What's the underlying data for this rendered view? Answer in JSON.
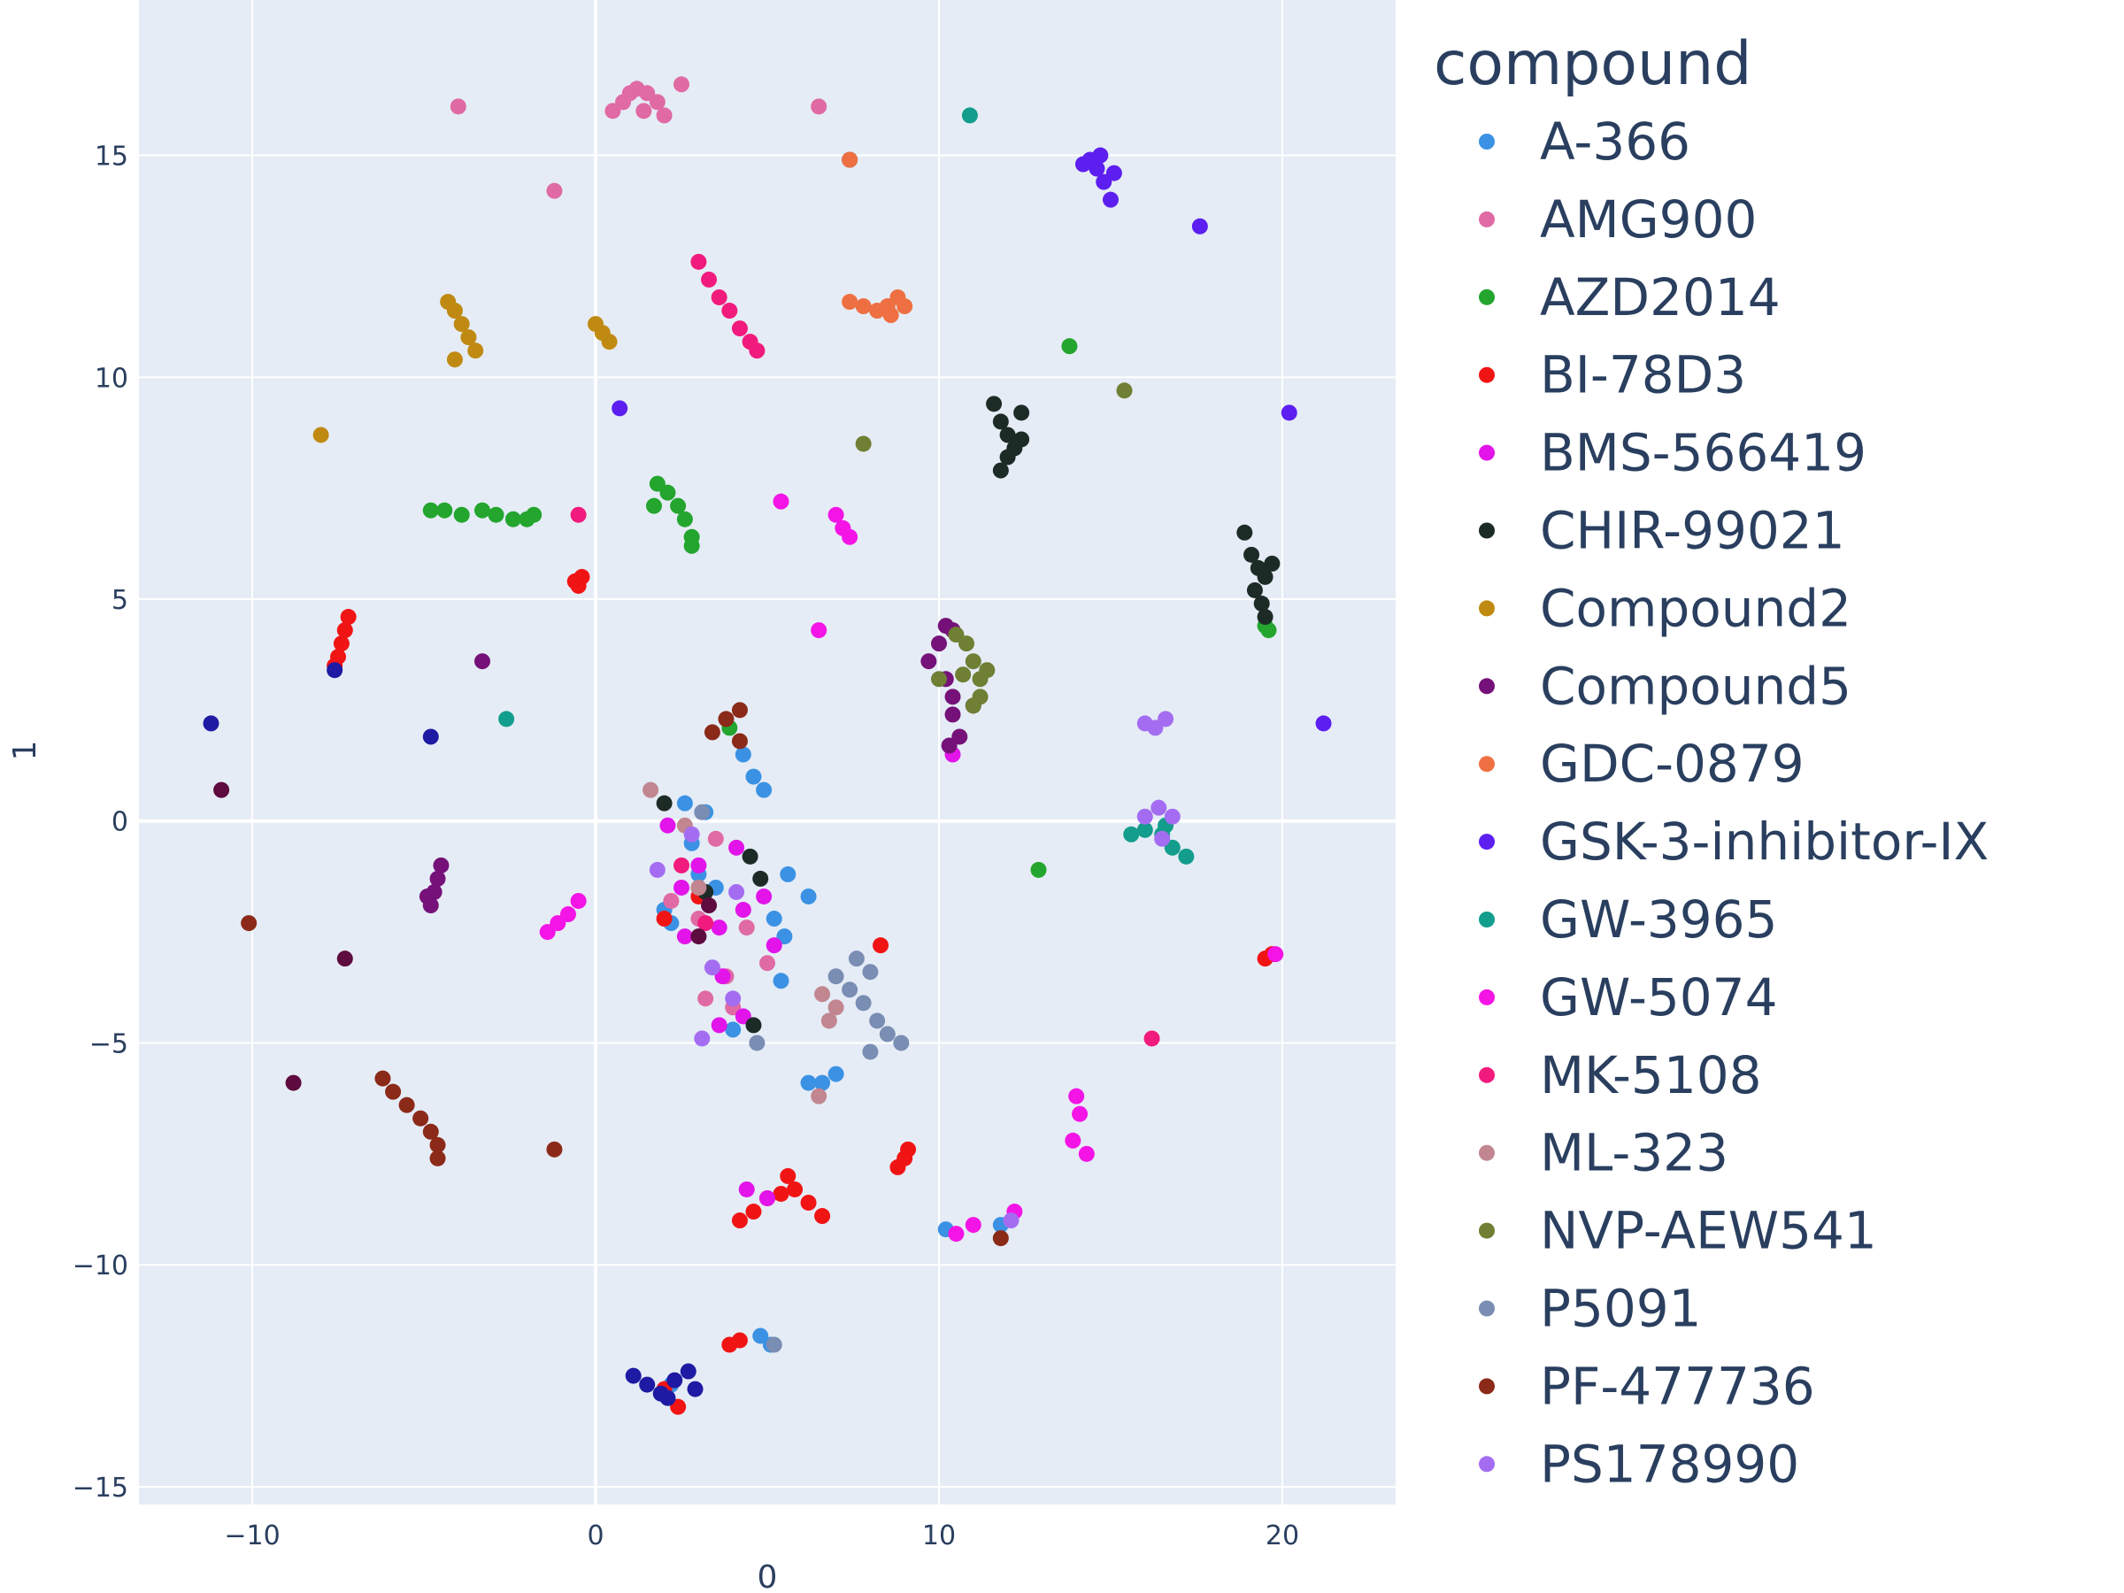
{
  "chart_data": {
    "type": "scatter",
    "title": "",
    "xlabel": "0",
    "ylabel": "1",
    "xlim": [
      -13.3,
      23.3
    ],
    "ylim": [
      -15.4,
      18.5
    ],
    "xticks": [
      -10,
      0,
      10,
      20
    ],
    "yticks": [
      -15,
      -10,
      -5,
      0,
      5,
      10,
      15
    ],
    "xtick_labels": [
      "−10",
      "0",
      "10",
      "20"
    ],
    "ytick_labels": [
      "−15",
      "−10",
      "−5",
      "0",
      "5",
      "10",
      "15"
    ],
    "grid": true,
    "legend": {
      "title": "compound",
      "placement": "right"
    },
    "series": [
      {
        "name": "A-366",
        "color": "#3b92e4",
        "points": [
          [
            2.0,
            -2.0
          ],
          [
            2.2,
            -2.3
          ],
          [
            2.6,
            0.4
          ],
          [
            3.2,
            0.2
          ],
          [
            3.5,
            -1.5
          ],
          [
            4.3,
            1.5
          ],
          [
            4.6,
            1.0
          ],
          [
            4.9,
            0.7
          ],
          [
            5.2,
            -2.2
          ],
          [
            5.6,
            -1.2
          ],
          [
            6.2,
            -1.7
          ],
          [
            5.5,
            -2.6
          ],
          [
            5.4,
            -3.6
          ],
          [
            4.0,
            -4.7
          ],
          [
            6.2,
            -5.9
          ],
          [
            6.6,
            -5.9
          ],
          [
            7.0,
            -5.7
          ],
          [
            10.2,
            -9.2
          ],
          [
            11.8,
            -9.1
          ],
          [
            5.1,
            -11.8
          ],
          [
            4.8,
            -11.6
          ],
          [
            2.2,
            -12.7
          ],
          [
            3.0,
            -1.2
          ],
          [
            2.8,
            -0.5
          ]
        ]
      },
      {
        "name": "AMG900",
        "color": "#e06aa3",
        "points": [
          [
            0.5,
            16.0
          ],
          [
            0.8,
            16.2
          ],
          [
            1.0,
            16.4
          ],
          [
            1.2,
            16.5
          ],
          [
            1.5,
            16.4
          ],
          [
            1.8,
            16.2
          ],
          [
            1.4,
            16.0
          ],
          [
            2.0,
            15.9
          ],
          [
            2.5,
            16.6
          ],
          [
            -4.0,
            16.1
          ],
          [
            -1.2,
            14.2
          ],
          [
            6.5,
            16.1
          ],
          [
            2.2,
            -1.8
          ],
          [
            3.0,
            -2.2
          ],
          [
            4.4,
            -2.4
          ],
          [
            3.2,
            -4.0
          ],
          [
            3.8,
            -3.5
          ],
          [
            5.0,
            -3.2
          ],
          [
            4.0,
            -4.2
          ],
          [
            3.5,
            -0.4
          ]
        ]
      },
      {
        "name": "AZD2014",
        "color": "#23a52e",
        "points": [
          [
            -4.8,
            7.0
          ],
          [
            -4.4,
            7.0
          ],
          [
            -3.9,
            6.9
          ],
          [
            -3.3,
            7.0
          ],
          [
            -2.9,
            6.9
          ],
          [
            -2.4,
            6.8
          ],
          [
            -2.0,
            6.8
          ],
          [
            -1.8,
            6.9
          ],
          [
            1.8,
            7.6
          ],
          [
            2.1,
            7.4
          ],
          [
            2.4,
            7.1
          ],
          [
            2.6,
            6.8
          ],
          [
            2.8,
            6.4
          ],
          [
            1.7,
            7.1
          ],
          [
            2.8,
            6.2
          ],
          [
            13.8,
            10.7
          ],
          [
            12.9,
            -1.1
          ],
          [
            19.5,
            4.4
          ],
          [
            19.6,
            4.3
          ],
          [
            3.9,
            2.1
          ]
        ]
      },
      {
        "name": "BI-78D3",
        "color": "#f11414",
        "points": [
          [
            -7.2,
            4.6
          ],
          [
            -7.3,
            4.3
          ],
          [
            -7.4,
            4.0
          ],
          [
            -7.5,
            3.7
          ],
          [
            -7.6,
            3.5
          ],
          [
            -0.6,
            5.4
          ],
          [
            -0.5,
            5.3
          ],
          [
            -0.4,
            5.5
          ],
          [
            4.2,
            -9.0
          ],
          [
            4.6,
            -8.8
          ],
          [
            5.0,
            -8.5
          ],
          [
            5.4,
            -8.4
          ],
          [
            5.8,
            -8.3
          ],
          [
            6.2,
            -8.6
          ],
          [
            6.6,
            -8.9
          ],
          [
            5.6,
            -8.0
          ],
          [
            8.8,
            -7.8
          ],
          [
            9.0,
            -7.6
          ],
          [
            9.1,
            -7.4
          ],
          [
            3.9,
            -11.8
          ],
          [
            4.2,
            -11.7
          ],
          [
            2.0,
            -12.8
          ],
          [
            2.4,
            -13.2
          ],
          [
            19.5,
            -3.1
          ],
          [
            19.7,
            -3.0
          ],
          [
            2.0,
            -2.2
          ],
          [
            3.0,
            -1.7
          ],
          [
            8.3,
            -2.8
          ]
        ]
      },
      {
        "name": "BMS-566419",
        "color": "#e214e9",
        "points": [
          [
            2.1,
            -0.1
          ],
          [
            2.5,
            -1.5
          ],
          [
            3.0,
            -1.0
          ],
          [
            3.6,
            -2.4
          ],
          [
            4.3,
            -2.0
          ],
          [
            3.7,
            -3.5
          ],
          [
            4.3,
            -4.4
          ],
          [
            3.6,
            -4.6
          ],
          [
            2.6,
            -2.6
          ],
          [
            4.1,
            -0.6
          ],
          [
            4.9,
            -1.7
          ],
          [
            5.2,
            -2.8
          ],
          [
            4.4,
            -8.3
          ],
          [
            5.0,
            -8.5
          ],
          [
            10.4,
            1.5
          ]
        ]
      },
      {
        "name": "CHIR-99021",
        "color": "#1d2b27",
        "points": [
          [
            11.6,
            9.4
          ],
          [
            11.8,
            9.0
          ],
          [
            12.0,
            8.7
          ],
          [
            12.2,
            8.4
          ],
          [
            12.4,
            9.2
          ],
          [
            12.0,
            8.2
          ],
          [
            11.8,
            7.9
          ],
          [
            12.4,
            8.6
          ],
          [
            18.9,
            6.5
          ],
          [
            19.1,
            6.0
          ],
          [
            19.3,
            5.7
          ],
          [
            19.5,
            5.5
          ],
          [
            19.7,
            5.8
          ],
          [
            19.2,
            5.2
          ],
          [
            19.4,
            4.9
          ],
          [
            19.5,
            4.6
          ],
          [
            2.0,
            0.4
          ],
          [
            3.2,
            -1.6
          ],
          [
            4.5,
            -0.8
          ],
          [
            4.8,
            -1.3
          ],
          [
            4.6,
            -4.6
          ],
          [
            7.4,
            14.9
          ]
        ]
      },
      {
        "name": "Compound2",
        "color": "#c08a12",
        "points": [
          [
            -4.3,
            11.7
          ],
          [
            -4.1,
            11.5
          ],
          [
            -3.9,
            11.2
          ],
          [
            -3.7,
            10.9
          ],
          [
            -3.5,
            10.6
          ],
          [
            -4.1,
            10.4
          ],
          [
            0.0,
            11.2
          ],
          [
            0.2,
            11.0
          ],
          [
            0.4,
            10.8
          ],
          [
            -8.0,
            8.7
          ]
        ]
      },
      {
        "name": "Compound5",
        "color": "#751179",
        "points": [
          [
            -4.5,
            -1.0
          ],
          [
            -4.6,
            -1.3
          ],
          [
            -4.7,
            -1.6
          ],
          [
            -4.8,
            -1.9
          ],
          [
            -4.9,
            -1.7
          ],
          [
            -3.3,
            3.6
          ],
          [
            10.0,
            4.0
          ],
          [
            10.2,
            4.4
          ],
          [
            10.4,
            4.3
          ],
          [
            9.7,
            3.6
          ],
          [
            10.2,
            3.2
          ],
          [
            10.4,
            2.8
          ],
          [
            10.4,
            2.4
          ],
          [
            10.6,
            1.9
          ],
          [
            10.3,
            1.7
          ],
          [
            11.0,
            2.6
          ]
        ]
      },
      {
        "name": "GDC-0879",
        "color": "#ee7042",
        "points": [
          [
            7.4,
            11.7
          ],
          [
            7.8,
            11.6
          ],
          [
            8.2,
            11.5
          ],
          [
            8.5,
            11.6
          ],
          [
            8.8,
            11.8
          ],
          [
            9.0,
            11.6
          ],
          [
            8.6,
            11.4
          ],
          [
            7.4,
            14.9
          ]
        ]
      },
      {
        "name": "GSK-3-inhibitor-IX",
        "color": "#5c1ff0",
        "points": [
          [
            14.2,
            14.8
          ],
          [
            14.4,
            14.9
          ],
          [
            14.6,
            14.7
          ],
          [
            14.8,
            14.4
          ],
          [
            15.0,
            14.0
          ],
          [
            14.7,
            15.0
          ],
          [
            15.1,
            14.6
          ],
          [
            17.6,
            13.4
          ],
          [
            20.2,
            9.2
          ],
          [
            21.2,
            2.2
          ],
          [
            0.7,
            9.3
          ]
        ]
      },
      {
        "name": "GW-3965",
        "color": "#139d8c",
        "points": [
          [
            10.9,
            15.9
          ],
          [
            -2.6,
            2.3
          ],
          [
            15.6,
            -0.3
          ],
          [
            16.0,
            -0.2
          ],
          [
            16.5,
            -0.3
          ],
          [
            16.8,
            -0.6
          ],
          [
            17.2,
            -0.8
          ],
          [
            16.6,
            -0.1
          ]
        ]
      },
      {
        "name": "GW-5074",
        "color": "#f414e6",
        "points": [
          [
            5.4,
            7.2
          ],
          [
            7.0,
            6.9
          ],
          [
            7.2,
            6.6
          ],
          [
            7.4,
            6.4
          ],
          [
            6.5,
            4.3
          ],
          [
            -1.4,
            -2.5
          ],
          [
            -1.1,
            -2.3
          ],
          [
            -0.8,
            -2.1
          ],
          [
            -0.5,
            -1.8
          ],
          [
            14.0,
            -6.2
          ],
          [
            14.1,
            -6.6
          ],
          [
            13.9,
            -7.2
          ],
          [
            14.3,
            -7.5
          ],
          [
            10.5,
            -9.3
          ],
          [
            11.0,
            -9.1
          ],
          [
            12.2,
            -8.8
          ],
          [
            19.8,
            -3.0
          ]
        ]
      },
      {
        "name": "MK-5108",
        "color": "#f11b7d",
        "points": [
          [
            3.0,
            12.6
          ],
          [
            3.3,
            12.2
          ],
          [
            3.6,
            11.8
          ],
          [
            3.9,
            11.5
          ],
          [
            4.2,
            11.1
          ],
          [
            4.5,
            10.8
          ],
          [
            4.7,
            10.6
          ],
          [
            -0.5,
            6.9
          ],
          [
            16.2,
            -4.9
          ],
          [
            2.5,
            -1.0
          ],
          [
            3.2,
            -2.3
          ]
        ]
      },
      {
        "name": "ML-323",
        "color": "#c1868f",
        "points": [
          [
            1.6,
            0.7
          ],
          [
            2.6,
            -0.1
          ],
          [
            6.5,
            -6.2
          ],
          [
            6.6,
            -3.9
          ],
          [
            7.0,
            -4.2
          ],
          [
            6.8,
            -4.5
          ],
          [
            3.0,
            -1.5
          ]
        ]
      },
      {
        "name": "NVP-AEW541",
        "color": "#6f7f33",
        "points": [
          [
            10.5,
            4.2
          ],
          [
            10.8,
            4.0
          ],
          [
            11.0,
            3.6
          ],
          [
            11.2,
            3.2
          ],
          [
            10.7,
            3.3
          ],
          [
            11.4,
            3.4
          ],
          [
            11.2,
            2.8
          ],
          [
            11.0,
            2.6
          ],
          [
            10.0,
            3.2
          ],
          [
            7.8,
            8.5
          ],
          [
            15.4,
            9.7
          ]
        ]
      },
      {
        "name": "P5091",
        "color": "#7a8db3",
        "points": [
          [
            7.0,
            -3.5
          ],
          [
            7.4,
            -3.8
          ],
          [
            7.8,
            -4.1
          ],
          [
            8.0,
            -3.4
          ],
          [
            8.2,
            -4.5
          ],
          [
            8.5,
            -4.8
          ],
          [
            8.0,
            -5.2
          ],
          [
            8.9,
            -5.0
          ],
          [
            7.6,
            -3.1
          ],
          [
            4.7,
            -5.0
          ],
          [
            5.2,
            -11.8
          ],
          [
            3.1,
            0.2
          ]
        ]
      },
      {
        "name": "PF-477736",
        "color": "#8b2a18",
        "points": [
          [
            -6.2,
            -5.8
          ],
          [
            -5.9,
            -6.1
          ],
          [
            -5.5,
            -6.4
          ],
          [
            -5.1,
            -6.7
          ],
          [
            -4.8,
            -7.0
          ],
          [
            -4.6,
            -7.3
          ],
          [
            -4.6,
            -7.6
          ],
          [
            -1.2,
            -7.4
          ],
          [
            -10.1,
            -2.3
          ],
          [
            11.8,
            -9.4
          ],
          [
            3.4,
            2.0
          ],
          [
            3.8,
            2.3
          ],
          [
            4.2,
            2.5
          ],
          [
            4.2,
            1.8
          ]
        ]
      },
      {
        "name": "PS178990",
        "color": "#a46df1",
        "points": [
          [
            1.8,
            -1.1
          ],
          [
            2.8,
            -0.3
          ],
          [
            4.1,
            -1.6
          ],
          [
            3.4,
            -3.3
          ],
          [
            4.0,
            -4.0
          ],
          [
            3.1,
            -4.9
          ],
          [
            16.0,
            2.2
          ],
          [
            16.3,
            2.1
          ],
          [
            16.6,
            2.3
          ],
          [
            16.0,
            0.1
          ],
          [
            16.4,
            0.3
          ],
          [
            16.8,
            0.1
          ],
          [
            16.5,
            -0.4
          ],
          [
            12.1,
            -9.0
          ]
        ]
      },
      {
        "name": "",
        "color": "#1f1aa3",
        "points": [
          [
            1.1,
            -12.5
          ],
          [
            1.5,
            -12.7
          ],
          [
            1.9,
            -12.9
          ],
          [
            2.3,
            -12.6
          ],
          [
            2.7,
            -12.4
          ],
          [
            2.9,
            -12.8
          ],
          [
            2.1,
            -13.0
          ],
          [
            -11.2,
            2.2
          ],
          [
            -4.8,
            1.9
          ],
          [
            -7.6,
            3.4
          ]
        ]
      },
      {
        "name": "",
        "color": "#5e0b3f",
        "points": [
          [
            -10.9,
            0.7
          ],
          [
            -8.8,
            -5.9
          ],
          [
            -7.3,
            -3.1
          ],
          [
            3.0,
            -2.6
          ],
          [
            3.3,
            -1.9
          ]
        ]
      }
    ]
  }
}
